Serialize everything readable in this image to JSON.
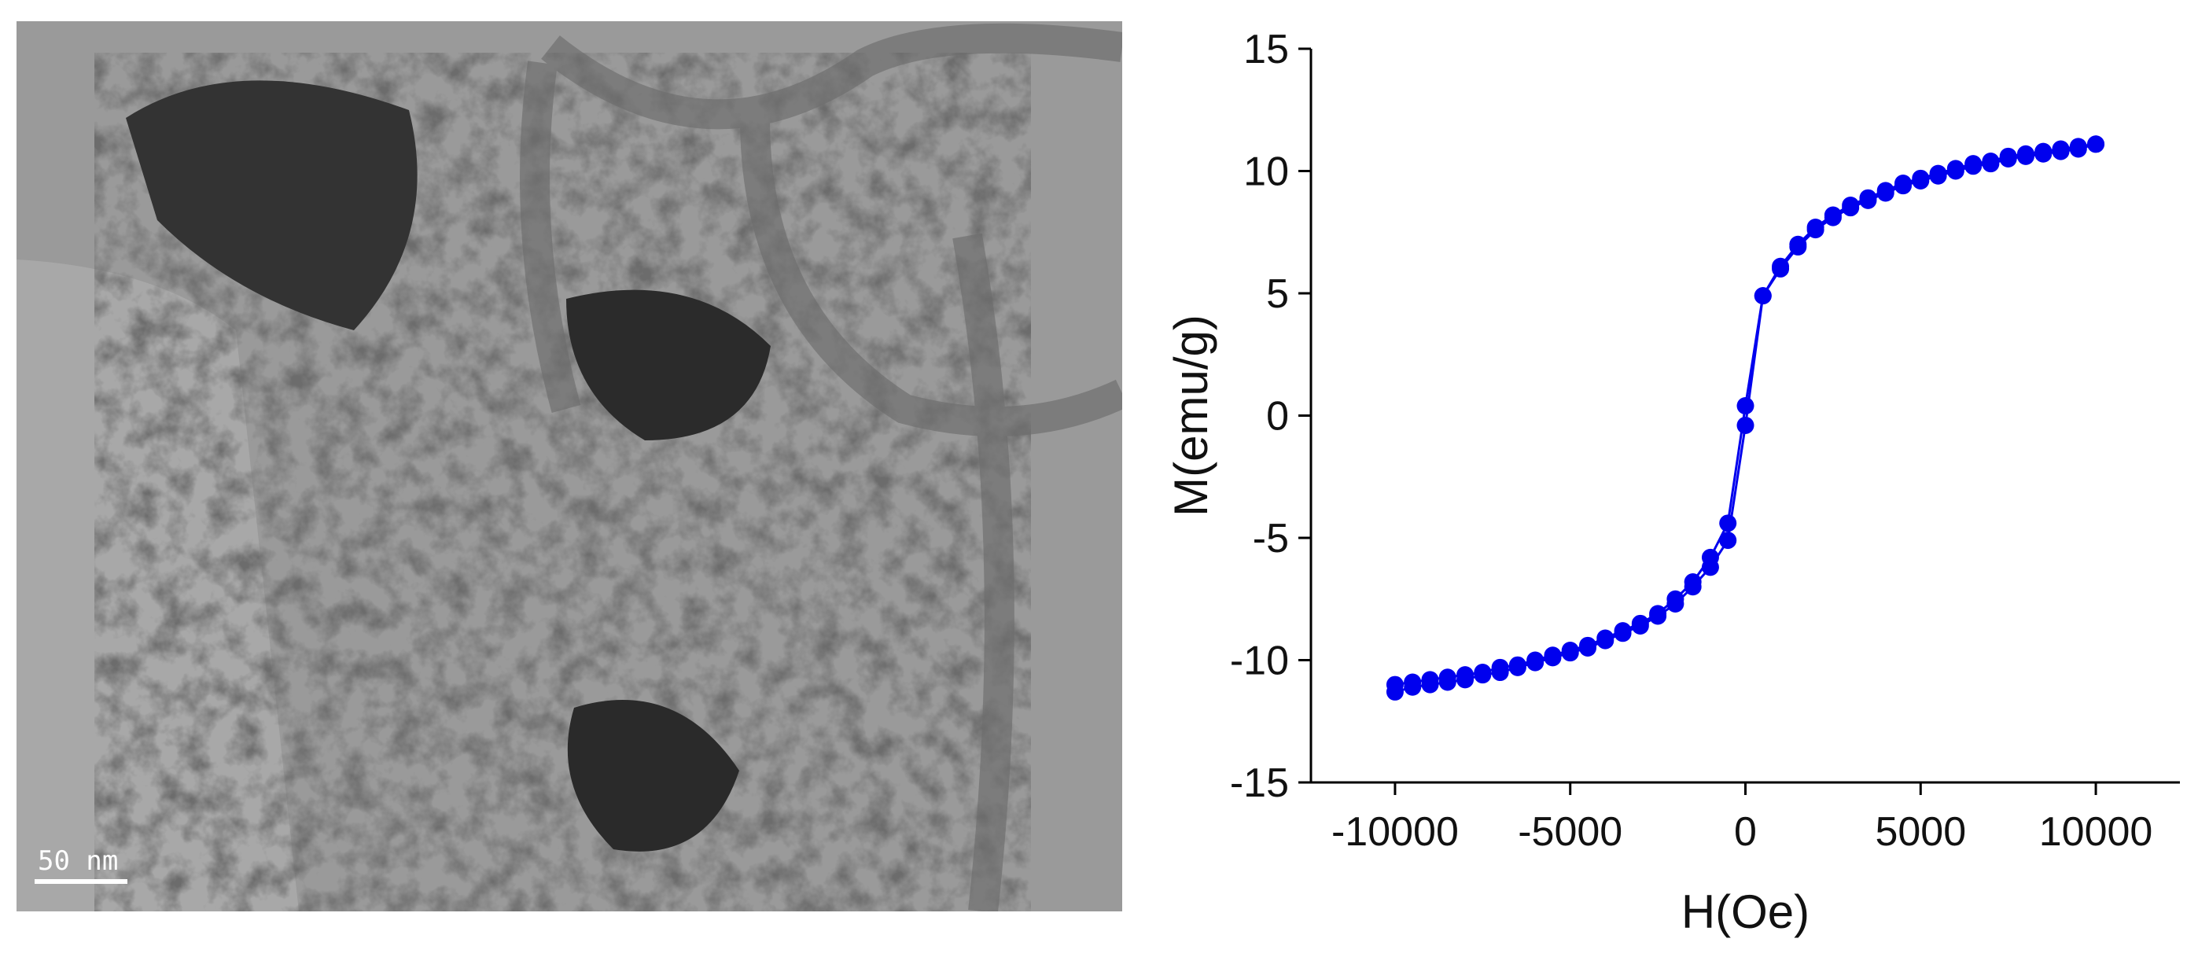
{
  "image": {
    "scale_bar": "50 nm"
  },
  "chart_data": {
    "type": "line",
    "x_label": "H(Oe)",
    "y_label": "M(emu/g)",
    "x": [
      -10000,
      -9500,
      -9000,
      -8500,
      -8000,
      -7500,
      -7000,
      -6500,
      -6000,
      -5500,
      -5000,
      -4500,
      -4000,
      -3500,
      -3000,
      -2500,
      -2000,
      -1500,
      -1000,
      -500,
      0,
      500,
      1000,
      1500,
      2000,
      2500,
      3000,
      3500,
      4000,
      4500,
      5000,
      5500,
      6000,
      6500,
      7000,
      7500,
      8000,
      8500,
      9000,
      9500,
      10000
    ],
    "series": [
      {
        "color": "#0000ee",
        "values": [
          -11.0,
          -10.9,
          -10.8,
          -10.7,
          -10.6,
          -10.5,
          -10.3,
          -10.2,
          -10.0,
          -9.8,
          -9.6,
          -9.4,
          -9.1,
          -8.8,
          -8.5,
          -8.1,
          -7.5,
          -6.8,
          -5.8,
          -4.4,
          0.4,
          4.9,
          6.1,
          7.0,
          7.7,
          8.2,
          8.6,
          8.9,
          9.2,
          9.5,
          9.7,
          9.9,
          10.1,
          10.3,
          10.4,
          10.6,
          10.7,
          10.8,
          10.9,
          11.0,
          11.1
        ]
      },
      {
        "color": "#0000ee",
        "values": [
          -11.3,
          -11.1,
          -11.0,
          -10.9,
          -10.8,
          -10.6,
          -10.5,
          -10.3,
          -10.1,
          -9.9,
          -9.7,
          -9.5,
          -9.2,
          -8.9,
          -8.6,
          -8.2,
          -7.7,
          -7.0,
          -6.2,
          -5.1,
          -0.4,
          4.9,
          6.0,
          6.9,
          7.6,
          8.1,
          8.5,
          8.8,
          9.1,
          9.4,
          9.6,
          9.8,
          10.0,
          10.2,
          10.3,
          10.5,
          10.6,
          10.7,
          10.8,
          10.9,
          11.1
        ]
      }
    ],
    "xlim": [
      -12400,
      12400
    ],
    "ylim": [
      -15,
      15
    ],
    "xticks": [
      -10000,
      -5000,
      0,
      5000,
      10000
    ],
    "yticks": [
      -15,
      -10,
      -5,
      0,
      5,
      10,
      15
    ]
  }
}
